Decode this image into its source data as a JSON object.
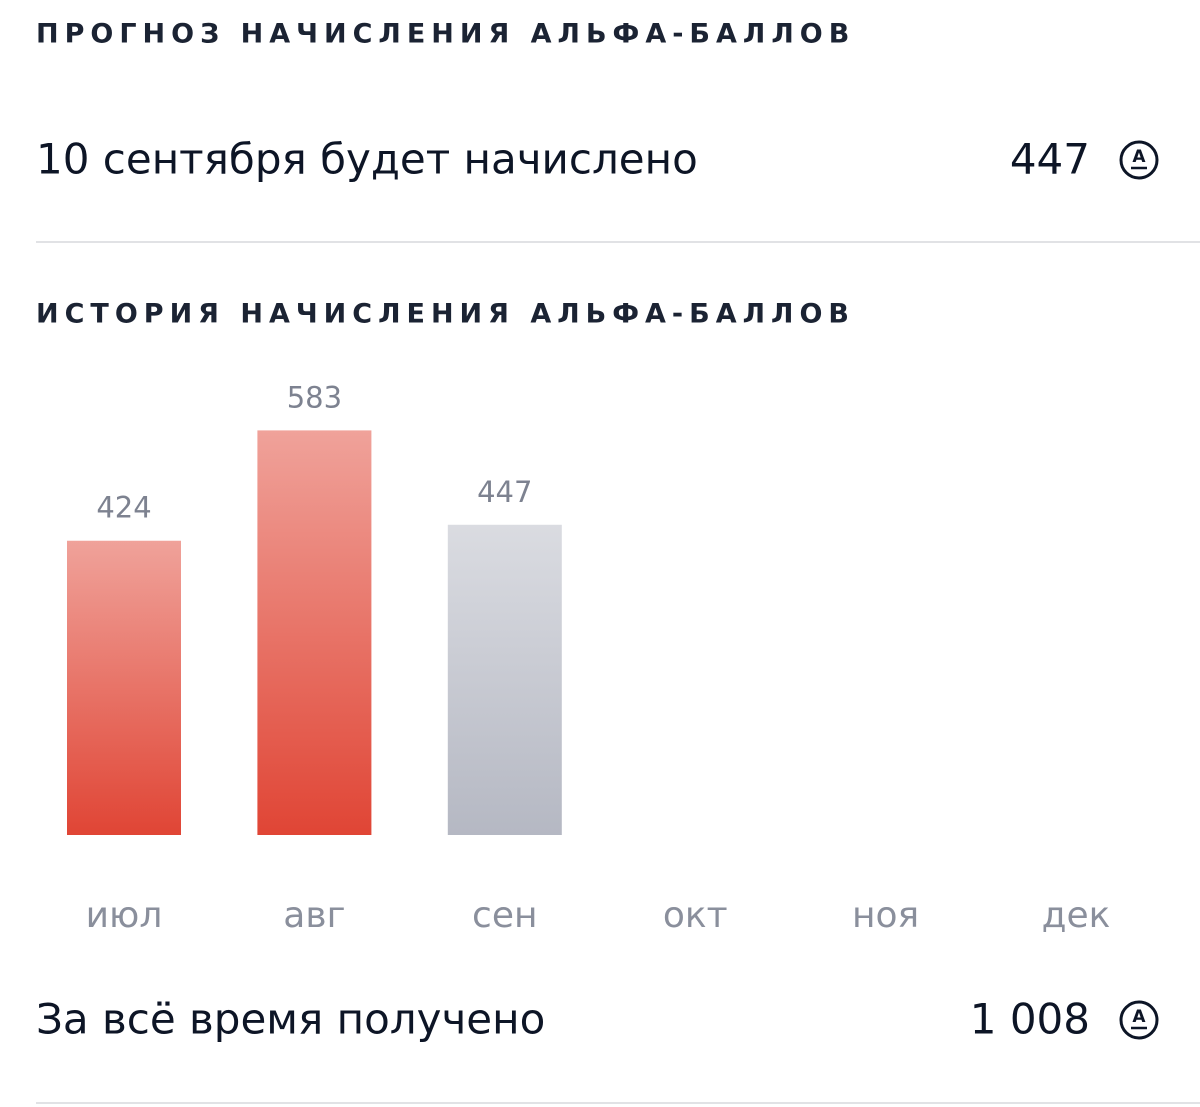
{
  "forecast": {
    "title": "ПРОГНОЗ НАЧИСЛЕНИЯ АЛЬФА-БАЛЛОВ",
    "label": "10 сентября будет начислено",
    "value": "447",
    "icon": "А"
  },
  "history": {
    "title": "ИСТОРИЯ НАЧИСЛЕНИЯ АЛЬФА-БАЛЛОВ"
  },
  "chart_data": {
    "type": "bar",
    "categories": [
      "июл",
      "авг",
      "сен",
      "окт",
      "ноя",
      "дек"
    ],
    "values": [
      424,
      583,
      447,
      null,
      null,
      null
    ],
    "colors": [
      "#e04535",
      "#e04535",
      "#b5b8c3",
      null,
      null,
      null
    ]
  },
  "total": {
    "label": "За всё время получено",
    "value": "1 008",
    "icon": "А"
  }
}
